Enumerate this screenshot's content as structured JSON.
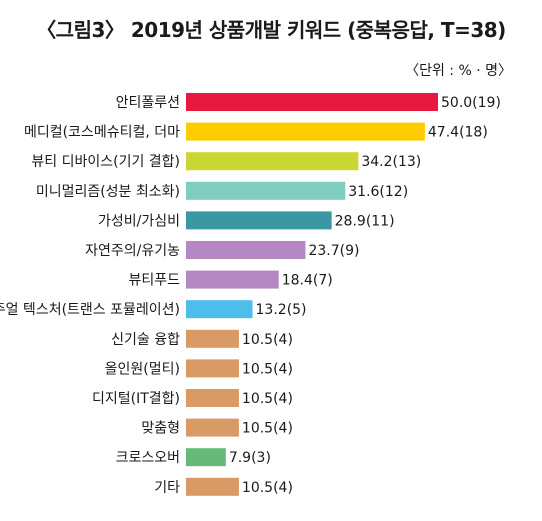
{
  "chart_data": {
    "type": "bar",
    "orientation": "horizontal",
    "title": "〈그림3〉 2019년 상품개발 키워드 (중복응답, T=38)",
    "unit_note": "〈단위 : % · 명〉",
    "categories": [
      "안티폴루션",
      "메디컬(코스메슈티컬, 더마",
      "뷰티 디바이스(기기 결합)",
      "미니멀리즘(성분 최소화)",
      "가성비/가심비",
      "자연주의/유기농",
      "뷰티푸드",
      "비주얼 텍스처(트랜스 포뮬레이션)",
      "신기술 융합",
      "올인원(멀티)",
      "디지털(IT결합)",
      "맞춤형",
      "크로스오버",
      "기타"
    ],
    "values": [
      50.0,
      47.4,
      34.2,
      31.6,
      28.9,
      23.7,
      18.4,
      13.2,
      10.5,
      10.5,
      10.5,
      10.5,
      7.9,
      10.5
    ],
    "counts": [
      19,
      18,
      13,
      12,
      11,
      9,
      7,
      5,
      4,
      4,
      4,
      4,
      3,
      4
    ],
    "value_labels": [
      "50.0(19)",
      "47.4(18)",
      "34.2(13)",
      "31.6(12)",
      "28.9(11)",
      "23.7(9)",
      "18.4(7)",
      "13.2(5)",
      "10.5(4)",
      "10.5(4)",
      "10.5(4)",
      "10.5(4)",
      "7.9(3)",
      "10.5(4)"
    ],
    "colors": [
      "#E8193F",
      "#FFCC00",
      "#CAD633",
      "#7ECDBF",
      "#3A97A3",
      "#B388C3",
      "#B388C3",
      "#4DBDEB",
      "#D99A66",
      "#D99A66",
      "#D99A66",
      "#D99A66",
      "#67B97A",
      "#D99A66"
    ],
    "xlim": [
      0,
      50
    ],
    "grid": false,
    "legend": "none"
  }
}
